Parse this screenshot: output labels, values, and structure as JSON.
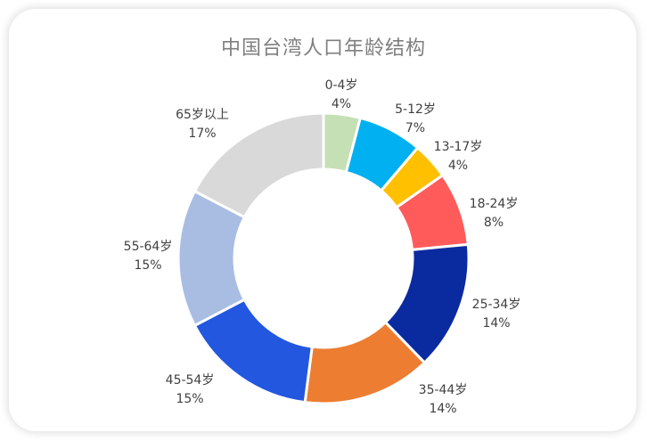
{
  "chart_data": {
    "type": "pie",
    "variant": "donut",
    "title": "中国台湾人口年龄结构",
    "categories": [
      "0-4岁",
      "5-12岁",
      "13-17岁",
      "18-24岁",
      "25-34岁",
      "35-44岁",
      "45-54岁",
      "55-64岁",
      "65岁以上"
    ],
    "values": [
      4,
      7,
      4,
      8,
      14,
      14,
      15,
      15,
      17
    ],
    "value_labels": [
      "4%",
      "7%",
      "4%",
      "8%",
      "14%",
      "14%",
      "15%",
      "15%",
      "17%"
    ],
    "colors": [
      "#c5e0b4",
      "#00b0f0",
      "#ffc000",
      "#ff5b5b",
      "#0a2aa0",
      "#ed7d31",
      "#2357e0",
      "#a9bde3",
      "#d9d9d9"
    ],
    "legend": "none (data labels on chart)",
    "unit": "%"
  },
  "labels": [
    {
      "name": "0-4岁",
      "pct": "4%"
    },
    {
      "name": "5-12岁",
      "pct": "7%"
    },
    {
      "name": "13-17岁",
      "pct": "4%"
    },
    {
      "name": "18-24岁",
      "pct": "8%"
    },
    {
      "name": "25-34岁",
      "pct": "14%"
    },
    {
      "name": "35-44岁",
      "pct": "14%"
    },
    {
      "name": "45-54岁",
      "pct": "15%"
    },
    {
      "name": "55-64岁",
      "pct": "15%"
    },
    {
      "name": "65岁以上",
      "pct": "17%"
    }
  ]
}
